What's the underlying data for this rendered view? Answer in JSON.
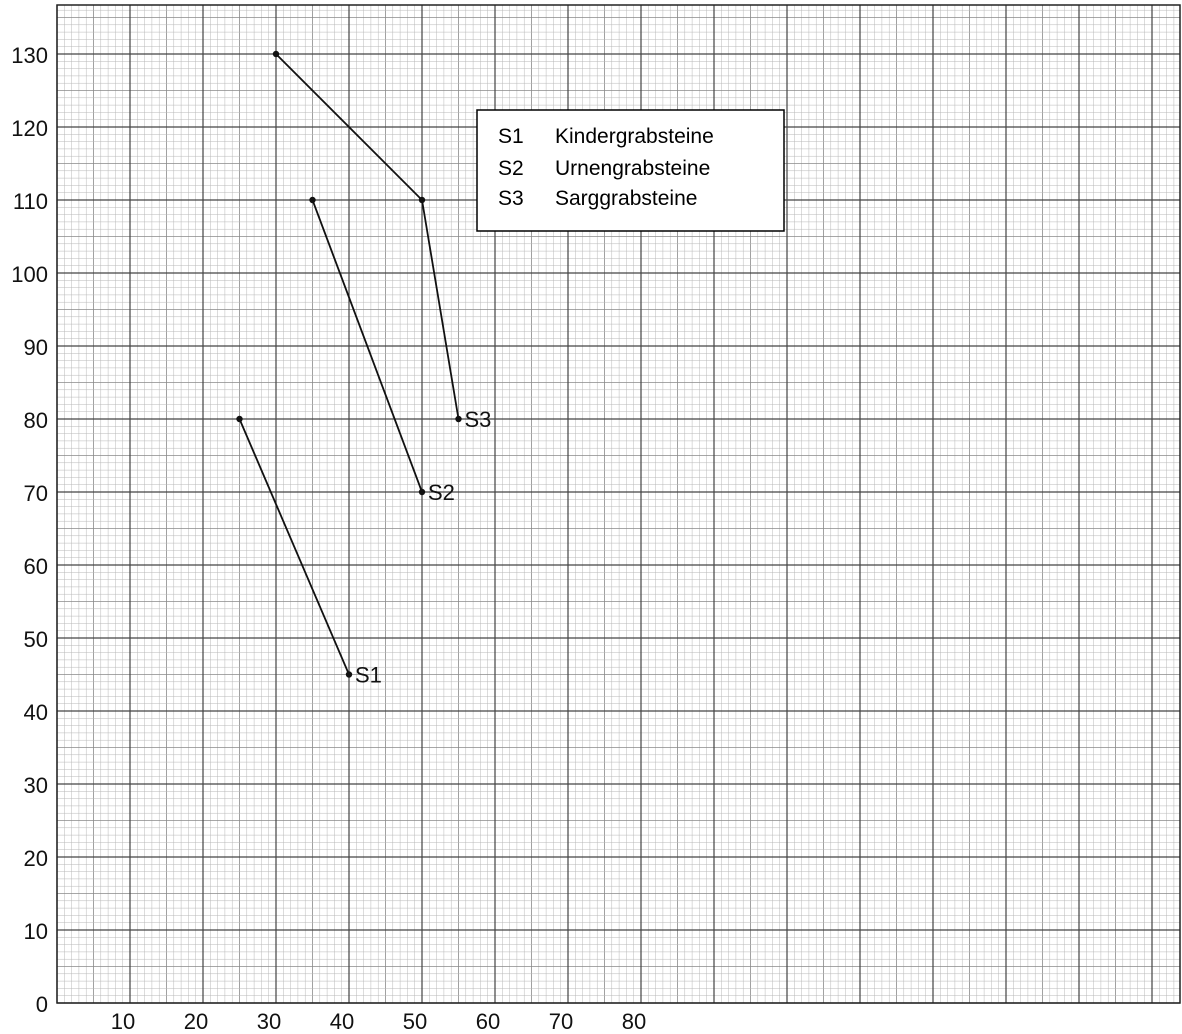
{
  "chart_data": {
    "type": "line",
    "title": "",
    "xlabel": "",
    "ylabel": "",
    "xlim": [
      0,
      150
    ],
    "ylim": [
      0,
      135
    ],
    "x_ticks": [
      10,
      20,
      30,
      40,
      50,
      60,
      70,
      80
    ],
    "y_ticks": [
      0,
      10,
      20,
      30,
      40,
      50,
      60,
      70,
      80,
      90,
      100,
      110,
      120,
      130
    ],
    "grid": true,
    "legend_position": "top-center",
    "colors": {
      "grid_major": "#444444",
      "grid_minor": "#b8b8b8",
      "line": "#111111",
      "background": "#ffffff"
    },
    "series": [
      {
        "name": "S1",
        "points": [
          {
            "x": 25,
            "y": 80
          },
          {
            "x": 40,
            "y": 45
          }
        ]
      },
      {
        "name": "S2",
        "points": [
          {
            "x": 35,
            "y": 110
          },
          {
            "x": 50,
            "y": 70
          }
        ]
      },
      {
        "name": "S3",
        "points": [
          {
            "x": 30,
            "y": 130
          },
          {
            "x": 50,
            "y": 110
          },
          {
            "x": 55,
            "y": 80
          }
        ]
      }
    ],
    "legend": [
      {
        "code": "S1",
        "label": "Kindergrabsteine"
      },
      {
        "code": "S2",
        "label": "Urnengrabsteine"
      },
      {
        "code": "S3",
        "label": "Sarggrabsteine"
      }
    ]
  }
}
